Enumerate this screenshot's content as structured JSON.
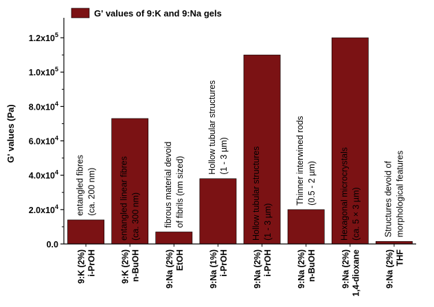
{
  "chart_data": {
    "type": "bar",
    "legend": {
      "label": "G' values of 9:K and 9:Na gels",
      "position": "top-left"
    },
    "ylabel": "G' values (Pa)",
    "xlabel": "",
    "ylim": [
      0,
      130000
    ],
    "bar_color": "#7b1214",
    "y_ticks": [
      {
        "value": 0,
        "label": "0.0"
      },
      {
        "value": 20000,
        "mantissa": "2.0x10",
        "exp": "4"
      },
      {
        "value": 40000,
        "mantissa": "4.0x10",
        "exp": "4"
      },
      {
        "value": 60000,
        "mantissa": "6.0x10",
        "exp": "4"
      },
      {
        "value": 80000,
        "mantissa": "8.0x10",
        "exp": "4"
      },
      {
        "value": 100000,
        "mantissa": "1.0x10",
        "exp": "5"
      },
      {
        "value": 120000,
        "mantissa": "1.2x10",
        "exp": "5"
      }
    ],
    "categories": [
      [
        "9:K (2%)",
        "i-PrOH"
      ],
      [
        "9:K (2%)",
        "n-BuOH"
      ],
      [
        "9:Na (2%)",
        "EtOH"
      ],
      [
        "9:Na (1%)",
        "i-PrOH"
      ],
      [
        "9:Na (2%)",
        "i-PrOH"
      ],
      [
        "9:Na (2%)",
        "n-BuOH"
      ],
      [
        "9:Na (2%)",
        "1,4-dioxane"
      ],
      [
        "9:Na (2%)",
        "THF"
      ]
    ],
    "values": [
      14000,
      73000,
      7000,
      38000,
      110000,
      20000,
      120000,
      1500
    ],
    "annotations": [
      {
        "lines": [
          "entangled fibres",
          "(ca. 200 nm)"
        ],
        "inside": false,
        "color": "#000000"
      },
      {
        "lines": [
          "entangled linear fibres",
          "(ca. 300 nm)"
        ],
        "inside": true,
        "color": "#ffffff"
      },
      {
        "lines": [
          "fibrous material devoid",
          "of fibrils (nm sized)"
        ],
        "inside": false,
        "color": "#000000"
      },
      {
        "lines": [
          "Hollow tubular structures",
          "(1 - 3 µm)"
        ],
        "inside": false,
        "color": "#000000"
      },
      {
        "lines": [
          "Hollow tubular structures",
          "(1 - 3 µm)"
        ],
        "inside": true,
        "color": "#ffffff"
      },
      {
        "lines": [
          "Thinner interwined rods",
          "(0.5 - 2 µm)"
        ],
        "inside": false,
        "color": "#000000"
      },
      {
        "lines": [
          "Hexagonal microcrystals",
          "(ca. 5 × 3 µm)"
        ],
        "inside": true,
        "color": "#ffffff"
      },
      {
        "lines": [
          "Structures devoid of",
          "morphological features"
        ],
        "inside": false,
        "color": "#000000"
      }
    ]
  }
}
